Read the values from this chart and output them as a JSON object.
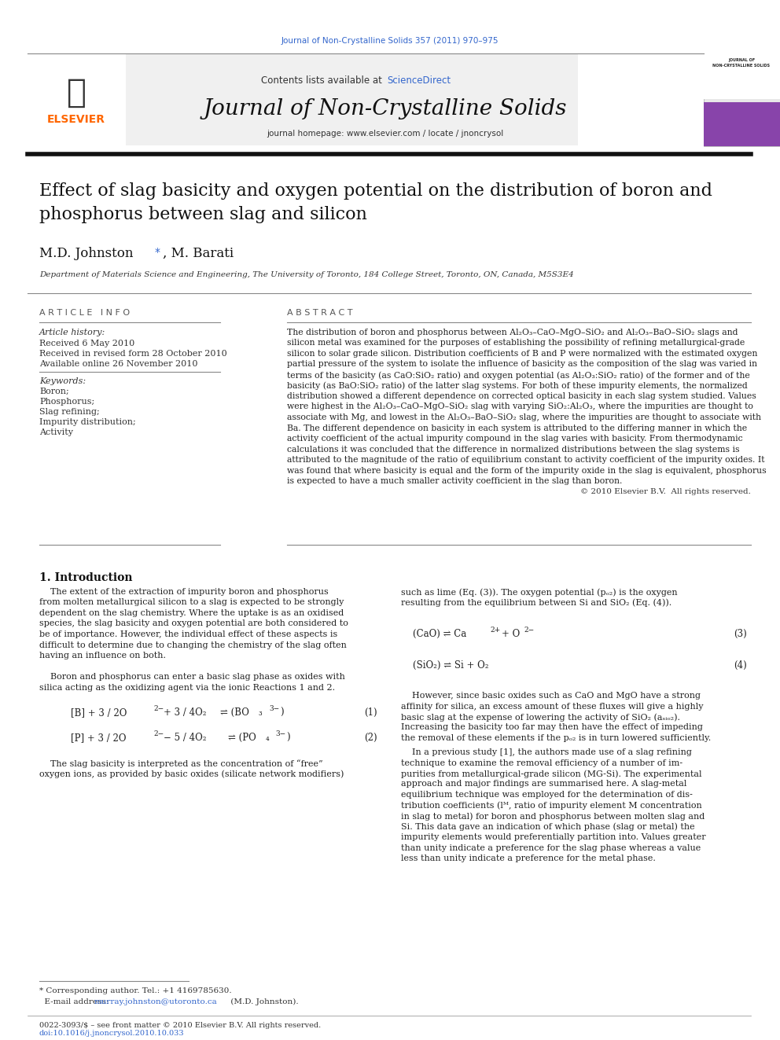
{
  "page_width": 9.92,
  "page_height": 13.23,
  "bg_color": "#ffffff",
  "top_journal_ref": "Journal of Non-Crystalline Solids 357 (2011) 970–975",
  "top_journal_ref_color": "#3366cc",
  "header_bg": "#f0f0f0",
  "header_contents": "Contents lists available at",
  "header_sciencedirect": "ScienceDirect",
  "header_sciencedirect_color": "#3366cc",
  "journal_title": "Journal of Non-Crystalline Solids",
  "journal_homepage": "journal homepage: www.elsevier.com / locate / jnoncrysol",
  "article_title_line1": "Effect of slag basicity and oxygen potential on the distribution of boron and",
  "article_title_line2": "phosphorus between slag and silicon",
  "authors_part1": "M.D. Johnston ",
  "authors_star": "*",
  "authors_part2": ", M. Barati",
  "affiliation": "Department of Materials Science and Engineering, The University of Toronto, 184 College Street, Toronto, ON, Canada, M5S3E4",
  "article_info_header": "A R T I C L E   I N F O",
  "abstract_header": "A B S T R A C T",
  "article_history_label": "Article history:",
  "received": "Received 6 May 2010",
  "revised": "Received in revised form 28 October 2010",
  "available": "Available online 26 November 2010",
  "keywords_label": "Keywords:",
  "keyword1": "Boron;",
  "keyword2": "Phosphorus;",
  "keyword3": "Slag refining;",
  "keyword4": "Impurity distribution;",
  "keyword5": "Activity",
  "abstract_text": "The distribution of boron and phosphorus between Al₂O₃–CaO–MgO–SiO₂ and Al₂O₃–BaO–SiO₂ slags and silicon metal was examined for the purposes of establishing the possibility of refining metallurgical-grade silicon to solar grade silicon. Distribution coefficients of B and P were normalized with the estimated oxygen partial pressure of the system to isolate the influence of basicity as the composition of the slag was varied in terms of the basicity (as CaO:SiO₂ ratio) and oxygen potential (as Al₂O₃:SiO₂ ratio) of the former and of the basicity (as BaO:SiO₂ ratio) of the latter slag systems. For both of these impurity elements, the normalized distribution showed a different dependence on corrected optical basicity in each slag system studied. Values were highest in the Al₂O₃–CaO–MgO–SiO₂ slag with varying SiO₂:Al₂O₃, where the impurities are thought to associate with Mg, and lowest in the Al₂O₃–BaO–SiO₂ slag, where the impurities are thought to associate with Ba. The different dependence on basicity in each system is attributed to the differing manner in which the activity coefficient of the actual impurity compound in the slag varies with basicity. From thermodynamic calculations it was concluded that the difference in normalized distributions between the slag systems is attributed to the magnitude of the ratio of equilibrium constant to activity coefficient of the impurity oxides. It was found that where basicity is equal and the form of the impurity oxide in the slag is equivalent, phosphorus is expected to have a much smaller activity coefficient in the slag than boron.",
  "copyright": "© 2010 Elsevier B.V.  All rights reserved.",
  "intro_header": "1. Introduction",
  "intro_col1_p1": "    The extent of the extraction of impurity boron and phosphorus from molten metallurgical silicon to a slag is expected to be strongly dependent on the slag chemistry. Where the uptake is as an oxidised species, the slag basicity and oxygen potential are both considered to be of importance. However, the individual effect of these aspects is difficult to determine due to changing the chemistry of the slag often having an influence on both.",
  "intro_col1_p2": "    Boron and phosphorus can enter a basic slag phase as oxides with silica acting as the oxidizing agent via the ionic Reactions 1 and 2.",
  "intro_col1_p3": "    The slag basicity is interpreted as the concentration of “free” oxygen ions, as provided by basic oxides (silicate network modifiers)",
  "intro_col2_start": "such as lime (Eq. (3)). The oxygen potential (pₒ₂) is the oxygen resulting from the equilibrium between Si and SiO₂ (Eq. (4)).",
  "intro_col2_p1": "    However, since basic oxides such as CaO and MgO have a strong affinity for silica, an excess amount of these fluxes will give a highly basic slag at the expense of lowering the activity of SiO₂ (aₛᵢₒ₂). Increasing the basicity too far may then have the effect of impeding the removal of these elements if the pₒ₂ is in turn lowered sufficiently.",
  "intro_col2_p2": "    In a previous study [1], the authors made use of a slag refining technique to examine the removal efficiency of a number of impurities from metallurgical-grade silicon (MG-Si). The experimental approach and major findings are summarised here. A slag-metal equilibrium technique was employed for the determination of distribution coefficients (lᴹ, ratio of impurity element M concentration in slag to metal) for boron and phosphorus between molten slag and Si. This data gave an indication of which phase (slag or metal) the impurity elements would preferentially partition into. Values greater than unity indicate a preference for the slag phase whereas a value less than unity indicate a preference for the metal phase.",
  "footnote1": "* Corresponding author. Tel.: +1 4169785630.",
  "footnote2_pre": "  E-mail address: ",
  "footnote2_link": "murray.johnston@utoronto.ca",
  "footnote2_post": " (M.D. Johnston).",
  "bottom_line1": "0022-3093/$ – see front matter © 2010 Elsevier B.V. All rights reserved.",
  "bottom_line2": "doi:10.1016/j.jnoncrysol.2010.10.033",
  "elsevier_orange": "#FF6600",
  "link_color": "#3366cc",
  "text_dark": "#111111",
  "text_mid": "#333333",
  "text_gray": "#555555",
  "rule_color": "#888888",
  "header_gray": "#f0f0f0"
}
